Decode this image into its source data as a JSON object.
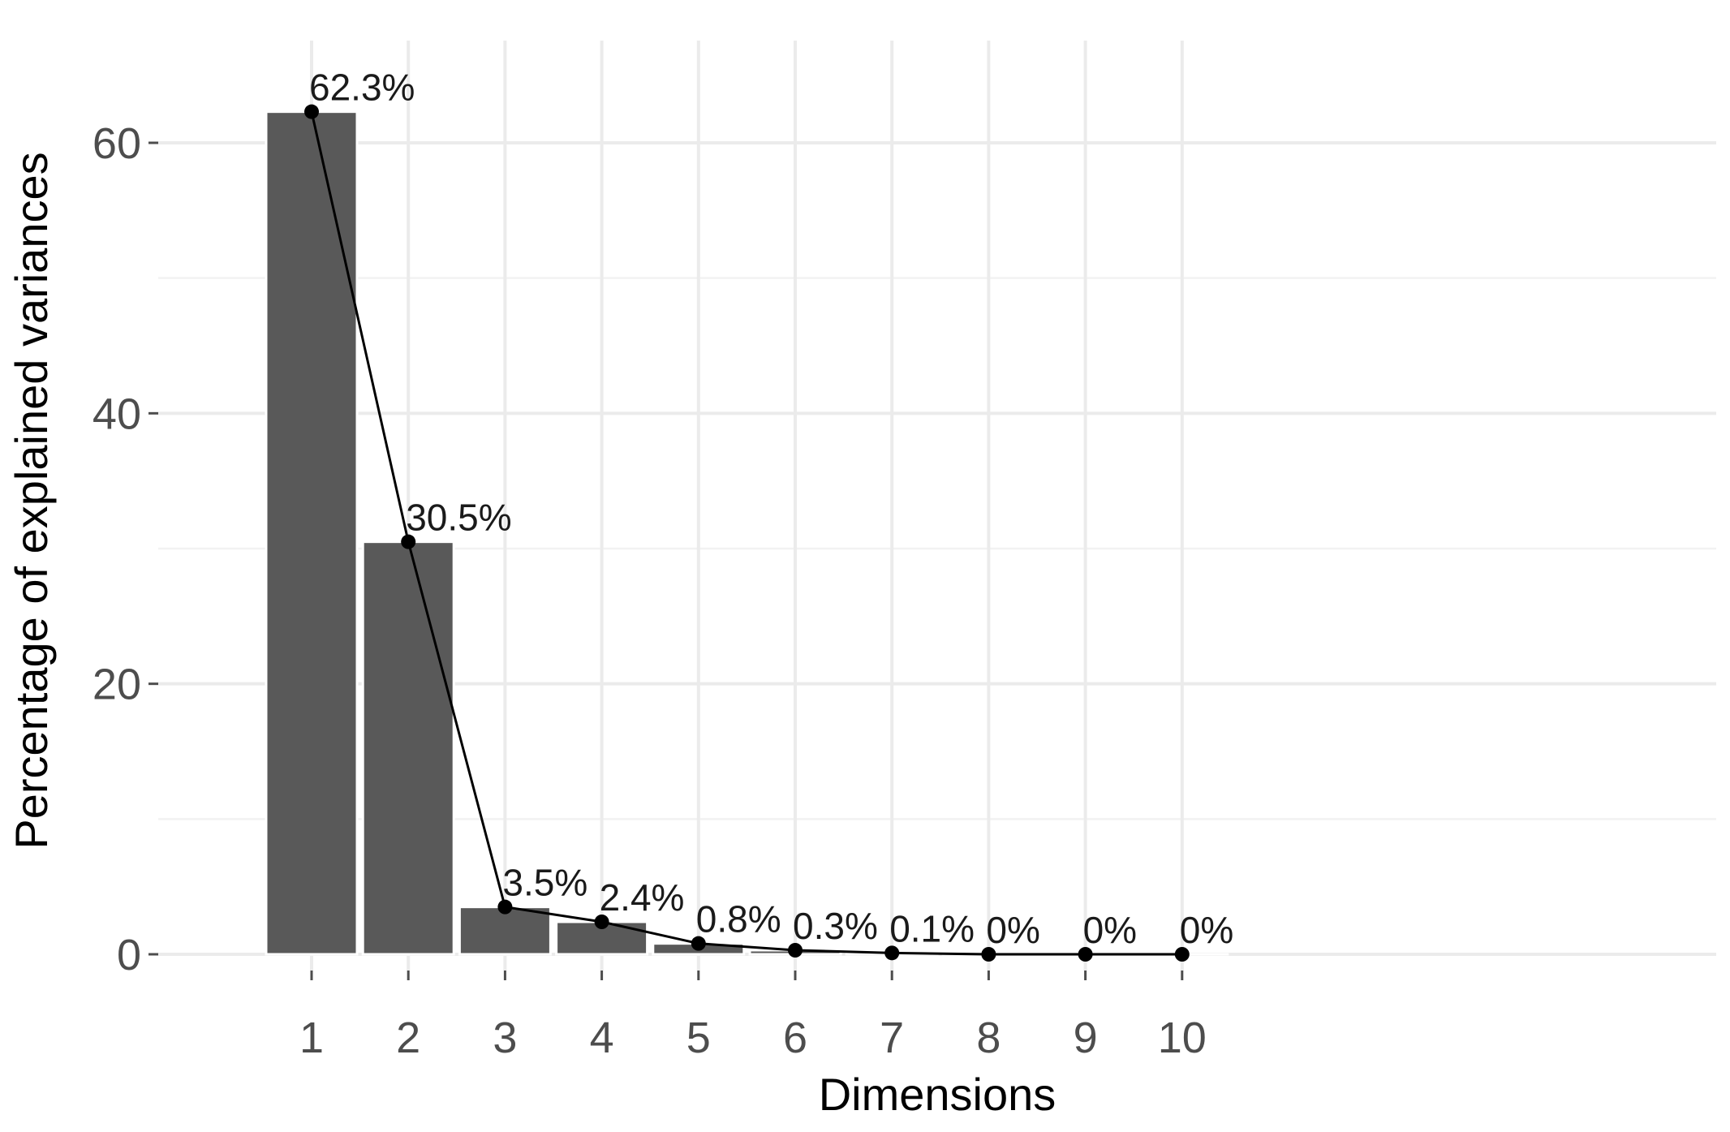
{
  "chart_data": {
    "type": "bar",
    "title": "",
    "xlabel": "Dimensions",
    "ylabel": "Percentage of explained variances",
    "categories": [
      "1",
      "2",
      "3",
      "4",
      "5",
      "6",
      "7",
      "8",
      "9",
      "10"
    ],
    "values": [
      62.3,
      30.5,
      3.5,
      2.4,
      0.8,
      0.3,
      0.1,
      0,
      0,
      0
    ],
    "data_labels": [
      "62.3%",
      "30.5%",
      "3.5%",
      "2.4%",
      "0.8%",
      "0.3%",
      "0.1%",
      "0%",
      "0%",
      "0%"
    ],
    "y_ticks": [
      0,
      20,
      40,
      60
    ],
    "ylim": [
      0,
      65
    ],
    "overlay": "line with points through bar tops",
    "grid": true,
    "legend": "none",
    "colors": {
      "bar": "#595959",
      "line": "#000000",
      "grid": "#ebebeb",
      "background": "#ffffff"
    }
  }
}
